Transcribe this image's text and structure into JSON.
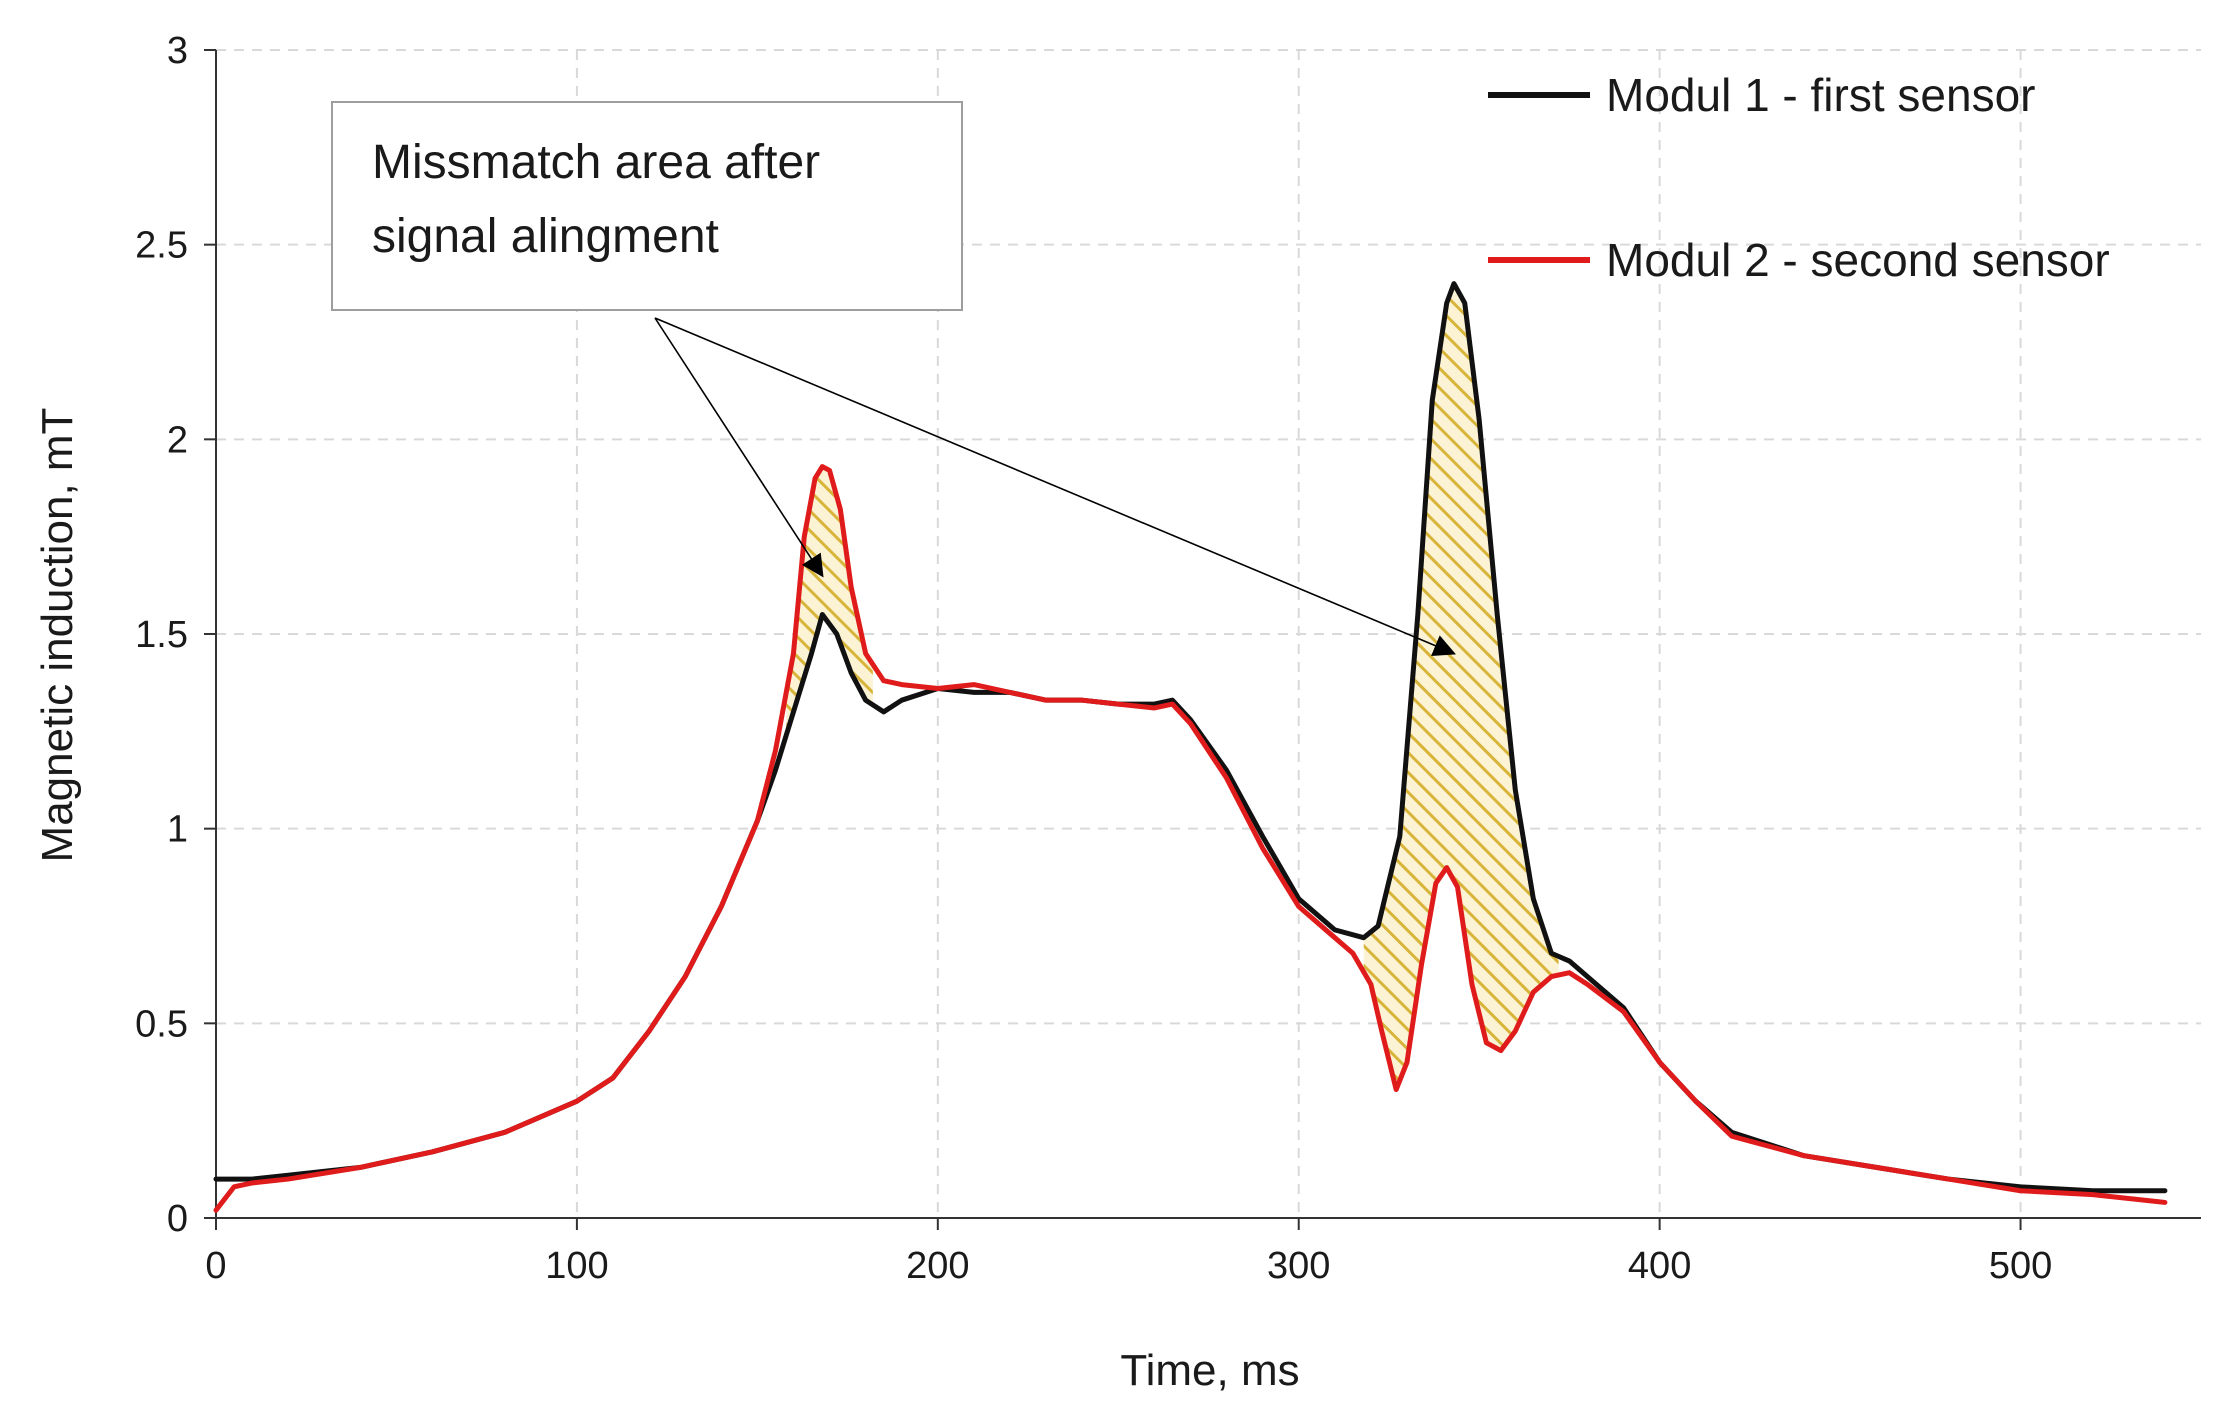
{
  "chart_data": {
    "type": "line",
    "title": "",
    "xlabel": "Time, ms",
    "ylabel": "Magnetic induction, mT",
    "xlim": [
      0,
      550
    ],
    "ylim": [
      0,
      3
    ],
    "x_ticks": [
      0,
      100,
      200,
      300,
      400,
      500
    ],
    "y_ticks": [
      0,
      0.5,
      1,
      1.5,
      2,
      2.5,
      3
    ],
    "x_tick_labels": [
      "0",
      "100",
      "200",
      "300",
      "400",
      "500"
    ],
    "y_tick_labels": [
      "0",
      "0.5",
      "1",
      "1.5",
      "2",
      "2.5",
      "3"
    ],
    "grid": true,
    "legend_position": "top-right",
    "series": [
      {
        "name": "Modul 1 - first sensor",
        "color": "#111111",
        "x": [
          0,
          10,
          20,
          40,
          60,
          80,
          100,
          110,
          120,
          130,
          140,
          150,
          155,
          160,
          165,
          168,
          172,
          176,
          180,
          185,
          190,
          200,
          210,
          220,
          230,
          240,
          250,
          260,
          265,
          270,
          280,
          290,
          300,
          310,
          318,
          322,
          328,
          333,
          337,
          341,
          343,
          346,
          350,
          355,
          360,
          365,
          370,
          375,
          380,
          390,
          400,
          410,
          420,
          440,
          460,
          480,
          500,
          520,
          540
        ],
        "y": [
          0.1,
          0.1,
          0.11,
          0.13,
          0.17,
          0.22,
          0.3,
          0.36,
          0.48,
          0.62,
          0.8,
          1.02,
          1.15,
          1.3,
          1.45,
          1.55,
          1.5,
          1.4,
          1.33,
          1.3,
          1.33,
          1.36,
          1.35,
          1.35,
          1.33,
          1.33,
          1.32,
          1.32,
          1.33,
          1.28,
          1.15,
          0.98,
          0.82,
          0.74,
          0.72,
          0.75,
          0.98,
          1.55,
          2.1,
          2.35,
          2.4,
          2.35,
          2.05,
          1.55,
          1.1,
          0.82,
          0.68,
          0.66,
          0.62,
          0.54,
          0.4,
          0.3,
          0.22,
          0.16,
          0.13,
          0.1,
          0.08,
          0.07,
          0.07
        ]
      },
      {
        "name": "Modul 2 - second sensor",
        "color": "#e01b1b",
        "x": [
          0,
          5,
          10,
          20,
          40,
          60,
          80,
          100,
          110,
          120,
          130,
          140,
          150,
          155,
          160,
          163,
          166,
          168,
          170,
          173,
          176,
          180,
          185,
          190,
          200,
          210,
          220,
          230,
          240,
          250,
          260,
          265,
          270,
          280,
          290,
          300,
          310,
          315,
          320,
          323,
          327,
          330,
          334,
          338,
          341,
          344,
          348,
          352,
          356,
          360,
          365,
          370,
          375,
          380,
          390,
          400,
          410,
          420,
          440,
          460,
          480,
          500,
          520,
          540
        ],
        "y": [
          0.02,
          0.08,
          0.09,
          0.1,
          0.13,
          0.17,
          0.22,
          0.3,
          0.36,
          0.48,
          0.62,
          0.8,
          1.02,
          1.2,
          1.45,
          1.75,
          1.9,
          1.93,
          1.92,
          1.82,
          1.62,
          1.45,
          1.38,
          1.37,
          1.36,
          1.37,
          1.35,
          1.33,
          1.33,
          1.32,
          1.31,
          1.32,
          1.27,
          1.13,
          0.95,
          0.8,
          0.72,
          0.68,
          0.6,
          0.48,
          0.33,
          0.4,
          0.65,
          0.86,
          0.9,
          0.85,
          0.6,
          0.45,
          0.43,
          0.48,
          0.58,
          0.62,
          0.63,
          0.6,
          0.53,
          0.4,
          0.3,
          0.21,
          0.16,
          0.13,
          0.1,
          0.07,
          0.06,
          0.04
        ]
      }
    ],
    "annotations": [
      {
        "text_lines": [
          "Missmatch area after",
          "signal alingment"
        ],
        "arrow_targets": [
          [
            168,
            1.65
          ],
          [
            343,
            1.45
          ]
        ]
      }
    ]
  }
}
